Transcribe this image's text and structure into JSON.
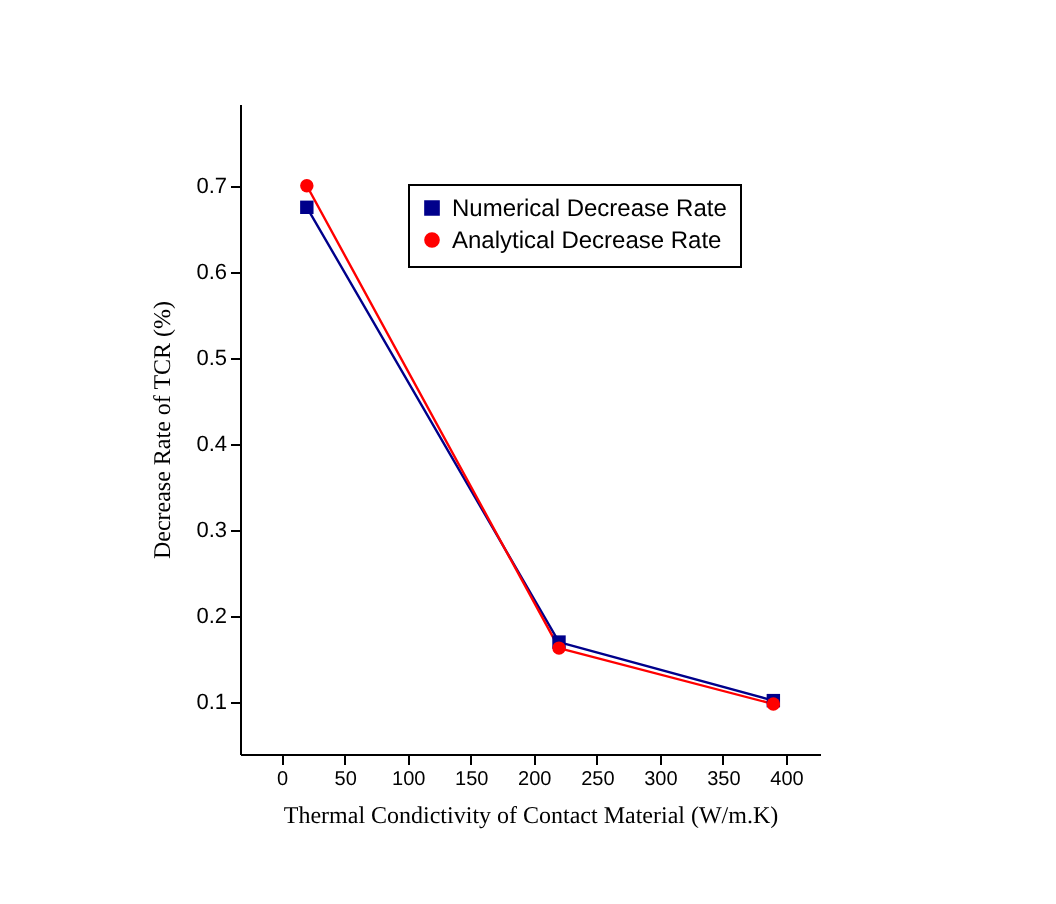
{
  "chart_data": {
    "type": "line",
    "xlabel": "Thermal Condictivity of Contact Material (W/m.K)",
    "ylabel": "Decrease Rate of TCR  (%)",
    "x": [
      20,
      220,
      390
    ],
    "series": [
      {
        "name": "Numerical Decrease Rate",
        "color": "#00008b",
        "marker": "square",
        "values": [
          0.675,
          0.17,
          0.102
        ]
      },
      {
        "name": "Analytical Decrease Rate",
        "color": "#ff0000",
        "marker": "circle",
        "values": [
          0.7,
          0.163,
          0.098
        ]
      }
    ],
    "xlim": [
      -33,
      427
    ],
    "xticks": [
      0,
      50,
      100,
      150,
      200,
      250,
      300,
      350,
      400
    ],
    "ylim": [
      0.04,
      0.795
    ],
    "yticks": [
      0.1,
      0.2,
      0.3,
      0.4,
      0.5,
      0.6,
      0.7
    ],
    "legend": "top right",
    "grid": false
  }
}
